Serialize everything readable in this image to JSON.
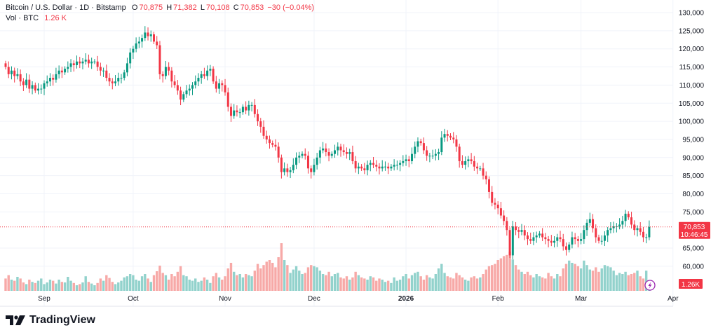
{
  "header": {
    "symbol": "Bitcoin / U.S. Dollar · 1D · Bitstamp",
    "open_label": "O",
    "open": "70,875",
    "high_label": "H",
    "high": "71,382",
    "low_label": "L",
    "low": "70,108",
    "close_label": "C",
    "close": "70,853",
    "change": "−30 (−0.04%)",
    "volume_label": "Vol · BTC",
    "volume": "1.26 K"
  },
  "price_axis": {
    "current_price": "70,853",
    "countdown": "10:46:45",
    "volume_badge": "1.26K"
  },
  "brand": {
    "name": "TradingView"
  },
  "colors": {
    "up": "#089981",
    "down": "#f23645",
    "up_volume": "#92d2cc",
    "down_volume": "#f7a9a7",
    "grid": "#f0f3fa",
    "accent": "#9c27b0"
  },
  "icons": {
    "replay": "lightning-icon",
    "logo": "tradingview-logo"
  },
  "chart_data": {
    "type": "candlestick",
    "interval": "1D",
    "first_date": "2025-08-19",
    "last_date": "2026-03-24",
    "ylim": [
      57000,
      131000
    ],
    "y_ticks": [
      "130,000",
      "125,000",
      "120,000",
      "115,000",
      "110,000",
      "105,000",
      "100,000",
      "95,000",
      "90,000",
      "85,000",
      "80,000",
      "75,000",
      "65,000",
      "60,000"
    ],
    "x_ticks": [
      {
        "label": "Sep",
        "date": "2025-09-01",
        "bold": false
      },
      {
        "label": "Oct",
        "date": "2025-10-01",
        "bold": false
      },
      {
        "label": "Nov",
        "date": "2025-11-01",
        "bold": false
      },
      {
        "label": "Dec",
        "date": "2025-12-01",
        "bold": false
      },
      {
        "label": "2026",
        "date": "2026-01-01",
        "bold": true
      },
      {
        "label": "Feb",
        "date": "2026-02-01",
        "bold": false
      },
      {
        "label": "Mar",
        "date": "2026-03-01",
        "bold": false
      },
      {
        "label": "Apr",
        "date": "2026-04-01",
        "bold": false
      }
    ],
    "grid": true,
    "close_thousands_usd": [
      115,
      113,
      114,
      112.5,
      113,
      111,
      110,
      111.5,
      109,
      110,
      108.5,
      109,
      109,
      110.5,
      111,
      112,
      111.5,
      113,
      114,
      113.5,
      114.5,
      115,
      116,
      115.5,
      116.5,
      116,
      116.5,
      117,
      116,
      116.5,
      116.5,
      115,
      114,
      114,
      112,
      111,
      110.5,
      111,
      112,
      112,
      113.5,
      116,
      119,
      120,
      121.5,
      122,
      123,
      124.5,
      123.5,
      124,
      122,
      121,
      113,
      112.5,
      115,
      114,
      111,
      110,
      108.5,
      106,
      107.5,
      108.5,
      109,
      110,
      111,
      112,
      113,
      112.5,
      114,
      114.5,
      111,
      109,
      110.5,
      110,
      108,
      104,
      101.5,
      103,
      102.5,
      102.5,
      104,
      103,
      104.5,
      104.5,
      102,
      100,
      98.5,
      96,
      95,
      94,
      93.5,
      93,
      90,
      86,
      87,
      86,
      86.5,
      88,
      90,
      90.5,
      91,
      90.5,
      87,
      86,
      88,
      90,
      92,
      92.5,
      91.5,
      90.5,
      91,
      92,
      93,
      92,
      91.5,
      91,
      91.5,
      89,
      87,
      87.5,
      87,
      86.5,
      88,
      88.5,
      88,
      87.5,
      87,
      87.5,
      87.5,
      87,
      87.5,
      88,
      88,
      88.5,
      89,
      89.5,
      89,
      91,
      93,
      94.5,
      94,
      92,
      90.5,
      90.5,
      90.5,
      91,
      91.5,
      95.5,
      96.5,
      96,
      95.5,
      95,
      93,
      89,
      88,
      89,
      89.5,
      89,
      87.5,
      87,
      87,
      85,
      84,
      80.5,
      77.5,
      77,
      76,
      74,
      72.5,
      70,
      63,
      71,
      70,
      69.5,
      70,
      68.5,
      67.5,
      67,
      68,
      68.5,
      69,
      68,
      67.5,
      67,
      66.5,
      67,
      68,
      67.5,
      65.5,
      64.5,
      66,
      68,
      67.5,
      67,
      67.5,
      70,
      72,
      73,
      70.5,
      68,
      67,
      67,
      68.5,
      70,
      70.5,
      71,
      71,
      71.5,
      72.5,
      74.5,
      73.5,
      71.5,
      70,
      70.5,
      69.5,
      68,
      68,
      70.853
    ],
    "volume_thousands_btc": [
      2.2,
      2.8,
      2.0,
      1.8,
      2.5,
      2.2,
      1.5,
      1.2,
      2.0,
      1.6,
      1.4,
      1.8,
      2.2,
      1.2,
      1.5,
      2.0,
      1.8,
      1.3,
      2.0,
      1.6,
      1.5,
      2.5,
      1.8,
      1.4,
      1.0,
      1.2,
      1.5,
      2.6,
      1.6,
      1.3,
      1.0,
      1.4,
      2.2,
      1.8,
      2.8,
      2.3,
      1.6,
      1.2,
      1.5,
      1.8,
      2.4,
      2.6,
      3.0,
      2.8,
      2.0,
      1.8,
      2.6,
      3.0,
      2.2,
      1.6,
      2.8,
      3.5,
      4.5,
      3.2,
      2.8,
      2.0,
      3.0,
      2.6,
      3.4,
      4.4,
      2.8,
      2.6,
      2.0,
      1.8,
      2.2,
      1.6,
      1.8,
      2.4,
      2.0,
      1.4,
      2.6,
      3.2,
      2.4,
      2.0,
      2.6,
      4.0,
      5.0,
      3.4,
      2.8,
      3.0,
      2.4,
      3.0,
      2.8,
      2.6,
      3.6,
      4.8,
      4.0,
      4.6,
      5.2,
      5.5,
      5.0,
      4.2,
      6.0,
      8.5,
      5.5,
      4.6,
      3.2,
      3.8,
      4.4,
      3.6,
      3.0,
      3.2,
      4.2,
      4.6,
      4.4,
      4.2,
      3.6,
      3.0,
      2.8,
      3.4,
      2.6,
      3.0,
      3.2,
      2.4,
      2.2,
      2.6,
      2.0,
      2.4,
      3.4,
      2.8,
      2.4,
      2.2,
      2.0,
      2.6,
      2.4,
      1.8,
      2.2,
      2.0,
      1.6,
      1.8,
      1.4,
      2.4,
      1.8,
      2.0,
      2.6,
      3.0,
      2.2,
      2.8,
      3.2,
      3.4,
      2.6,
      2.0,
      2.8,
      2.4,
      2.2,
      3.0,
      4.0,
      4.8,
      3.2,
      2.6,
      2.4,
      2.2,
      3.2,
      2.8,
      2.4,
      2.0,
      1.8,
      2.4,
      2.6,
      2.2,
      2.4,
      3.0,
      3.8,
      4.4,
      4.6,
      4.8,
      5.5,
      5.8,
      6.2,
      6.4,
      7.0,
      5.6,
      4.6,
      3.8,
      3.4,
      3.0,
      3.4,
      2.8,
      2.4,
      3.0,
      2.6,
      2.4,
      2.2,
      3.2,
      2.6,
      2.2,
      3.0,
      2.6,
      4.0,
      4.8,
      5.4,
      5.0,
      4.8,
      4.4,
      4.0,
      5.4,
      4.6,
      3.8,
      3.6,
      4.2,
      3.4,
      4.0,
      4.6,
      4.4,
      4.2,
      3.6,
      2.8,
      3.2,
      3.0,
      3.4,
      2.8,
      3.0,
      3.2,
      3.6,
      2.6,
      2.2,
      3.6,
      1.26
    ],
    "first_open_thousands_usd": 116,
    "current_price": 70853
  }
}
